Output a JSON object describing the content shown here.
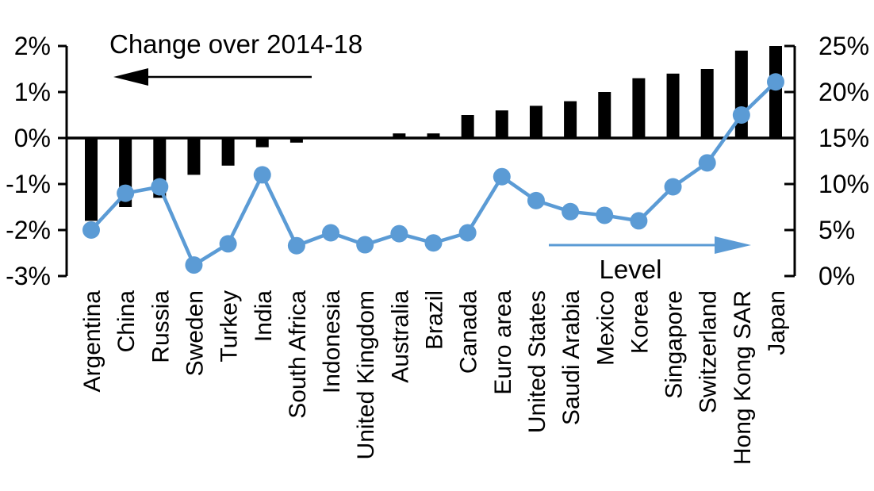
{
  "title": "Change over 2014-18",
  "level_label": "Level",
  "colors": {
    "bar": "#000000",
    "line": "#5B9BD5",
    "axis": "#000000",
    "text": "#000000",
    "background": "#FFFFFF"
  },
  "left_axis": {
    "tick_labels": [
      "2%",
      "1%",
      "0%",
      "-1%",
      "-2%",
      "-3%"
    ],
    "tick_values": [
      2,
      1,
      0,
      -1,
      -2,
      -3
    ]
  },
  "right_axis": {
    "tick_labels": [
      "25%",
      "20%",
      "15%",
      "10%",
      "5%",
      "0%"
    ],
    "tick_values": [
      25,
      20,
      15,
      10,
      5,
      0
    ]
  },
  "chart_data": {
    "type": "bar",
    "subtype": "combo bar + line, dual axis",
    "categories": [
      "Argentina",
      "China",
      "Russia",
      "Sweden",
      "Turkey",
      "India",
      "South Africa",
      "Indonesia",
      "United Kingdom",
      "Australia",
      "Brazil",
      "Canada",
      "Euro area",
      "United States",
      "Saudi Arabia",
      "Mexico",
      "Korea",
      "Singapore",
      "Switzerland",
      "Hong Kong SAR",
      "Japan"
    ],
    "series": [
      {
        "name": "Change over 2014-18",
        "type": "bar",
        "axis": "left",
        "unit": "%",
        "values": [
          -1.8,
          -1.5,
          -1.3,
          -0.8,
          -0.6,
          -0.2,
          -0.1,
          0.0,
          0.0,
          0.1,
          0.1,
          0.5,
          0.6,
          0.7,
          0.8,
          1.0,
          1.3,
          1.4,
          1.5,
          1.9,
          2.0
        ]
      },
      {
        "name": "Level",
        "type": "line",
        "axis": "right",
        "unit": "%",
        "values": [
          5.0,
          9.0,
          9.7,
          1.2,
          3.5,
          11.0,
          3.3,
          4.7,
          3.4,
          4.6,
          3.6,
          4.7,
          10.8,
          8.2,
          7.0,
          6.6,
          6.0,
          9.7,
          12.3,
          17.5,
          21.1
        ]
      }
    ],
    "left_ylim": [
      -3,
      2
    ],
    "right_ylim": [
      0,
      25
    ],
    "grid": false,
    "legend_position": "in-plot annotations with arrows",
    "annotations": [
      {
        "text": "Change over 2014-18",
        "arrow": "left",
        "color": "#000000",
        "refers_to": "bars / left axis"
      },
      {
        "text": "Level",
        "arrow": "right",
        "color": "#5B9BD5",
        "refers_to": "line / right axis"
      }
    ]
  }
}
